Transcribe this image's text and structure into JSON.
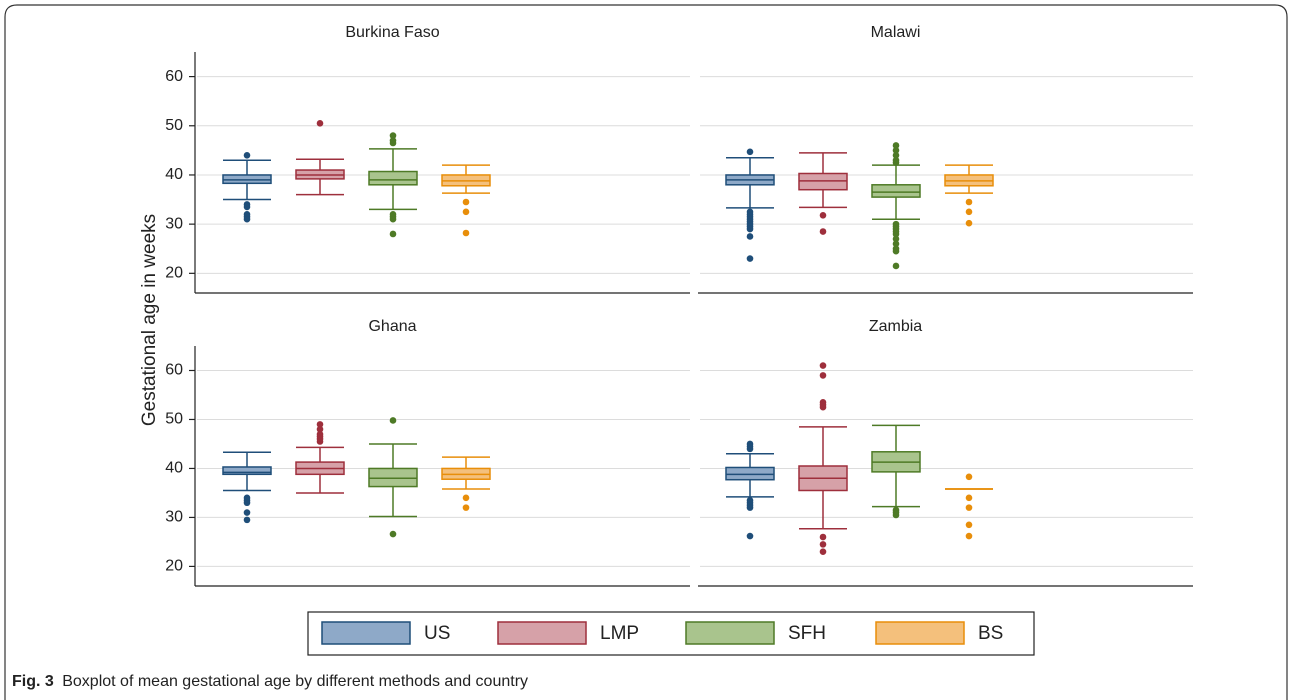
{
  "ylabel": "Gestational age in weeks",
  "legend": {
    "series": [
      {
        "name": "US",
        "color": "#1f4e79",
        "fill": "#8ea9c8"
      },
      {
        "name": "LMP",
        "color": "#9e2f3c",
        "fill": "#d6a1a8"
      },
      {
        "name": "SFH",
        "color": "#4e7a26",
        "fill": "#a9c48d"
      },
      {
        "name": "BS",
        "color": "#e88e0a",
        "fill": "#f4c07c"
      }
    ]
  },
  "caption": {
    "label": "Fig. 3",
    "text": "Boxplot of mean gestational age by different methods and country"
  },
  "chart_data": [
    {
      "type": "box",
      "title": "Burkina Faso",
      "ylim": [
        16,
        65
      ],
      "yticks": [
        20,
        30,
        40,
        50,
        60
      ],
      "grid": true,
      "boxes": [
        {
          "whislo": 35,
          "q1": 38.3,
          "med": 39,
          "q3": 40,
          "whishi": 43,
          "fliers": [
            44,
            34,
            33.5,
            32,
            31.5,
            31
          ]
        },
        {
          "whislo": 36,
          "q1": 39.2,
          "med": 40,
          "q3": 41,
          "whishi": 43.2,
          "fliers": [
            50.5
          ]
        },
        {
          "whislo": 33,
          "q1": 38,
          "med": 39,
          "q3": 40.7,
          "whishi": 45.3,
          "fliers": [
            48,
            47,
            46.5,
            32,
            31.5,
            31,
            28
          ]
        },
        {
          "whislo": 36.3,
          "q1": 37.8,
          "med": 38.8,
          "q3": 40,
          "whishi": 42,
          "fliers": [
            34.5,
            32.5,
            28.2
          ]
        }
      ]
    },
    {
      "type": "box",
      "title": "Malawi",
      "ylim": [
        16,
        65
      ],
      "yticks": [
        20,
        30,
        40,
        50,
        60
      ],
      "grid": true,
      "boxes": [
        {
          "whislo": 33.3,
          "q1": 38,
          "med": 39,
          "q3": 40,
          "whishi": 43.5,
          "fliers": [
            44.7,
            32.5,
            32,
            31.5,
            31,
            30.5,
            30,
            29.5,
            29,
            27.5,
            23
          ]
        },
        {
          "whislo": 33.4,
          "q1": 37,
          "med": 38.8,
          "q3": 40.3,
          "whishi": 44.5,
          "fliers": [
            31.8,
            28.5
          ]
        },
        {
          "whislo": 31,
          "q1": 35.5,
          "med": 36.5,
          "q3": 38,
          "whishi": 42,
          "fliers": [
            46,
            45,
            44,
            43,
            42.5,
            30,
            29.5,
            29,
            28.5,
            28,
            27,
            26,
            25,
            24.5,
            21.5
          ]
        },
        {
          "whislo": 36.3,
          "q1": 37.8,
          "med": 38.8,
          "q3": 40,
          "whishi": 42,
          "fliers": [
            34.5,
            32.5,
            30.2
          ]
        }
      ]
    },
    {
      "type": "box",
      "title": "Ghana",
      "ylim": [
        16,
        65
      ],
      "yticks": [
        20,
        30,
        40,
        50,
        60
      ],
      "grid": true,
      "boxes": [
        {
          "whislo": 35.5,
          "q1": 38.8,
          "med": 39.2,
          "q3": 40.3,
          "whishi": 43.3,
          "fliers": [
            34,
            33.5,
            33,
            31,
            29.5
          ]
        },
        {
          "whislo": 35,
          "q1": 38.8,
          "med": 40,
          "q3": 41.3,
          "whishi": 44.3,
          "fliers": [
            49,
            48,
            47,
            46.5,
            46,
            45.5
          ]
        },
        {
          "whislo": 30.2,
          "q1": 36.3,
          "med": 38,
          "q3": 40,
          "whishi": 45,
          "fliers": [
            49.8,
            26.6
          ]
        },
        {
          "whislo": 35.8,
          "q1": 37.8,
          "med": 38.8,
          "q3": 40,
          "whishi": 42.3,
          "fliers": [
            34,
            32
          ]
        }
      ]
    },
    {
      "type": "box",
      "title": "Zambia",
      "ylim": [
        16,
        65
      ],
      "yticks": [
        20,
        30,
        40,
        50,
        60
      ],
      "grid": true,
      "boxes": [
        {
          "whislo": 34.2,
          "q1": 37.7,
          "med": 38.8,
          "q3": 40.2,
          "whishi": 43,
          "fliers": [
            45,
            44.5,
            44,
            33.5,
            33,
            32.5,
            32,
            26.2
          ]
        },
        {
          "whislo": 27.7,
          "q1": 35.5,
          "med": 38,
          "q3": 40.5,
          "whishi": 48.5,
          "fliers": [
            61,
            59,
            53.5,
            53,
            52.5,
            26,
            24.5,
            23
          ]
        },
        {
          "whislo": 32.2,
          "q1": 39.3,
          "med": 41.3,
          "q3": 43.4,
          "whishi": 48.8,
          "fliers": [
            31.5,
            31,
            30.5
          ]
        },
        {
          "whislo": 35.8,
          "q1": 35.8,
          "med": 35.8,
          "q3": 35.8,
          "whishi": 35.8,
          "fliers": [
            38.3,
            34,
            32,
            28.5,
            26.2
          ]
        }
      ]
    }
  ]
}
